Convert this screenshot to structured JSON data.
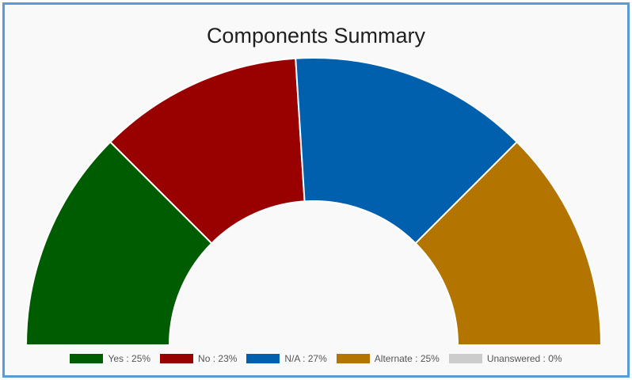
{
  "chart_data": {
    "type": "pie",
    "title": "Components Summary",
    "variant": "half-donut",
    "legend_position": "bottom",
    "slices": [
      {
        "label": "Yes : 25%",
        "value": 25,
        "color": "#005c00"
      },
      {
        "label": "No : 23%",
        "value": 23,
        "color": "#990000"
      },
      {
        "label": "N/A : 27%",
        "value": 27,
        "color": "#0060ad"
      },
      {
        "label": "Alternate : 25%",
        "value": 25,
        "color": "#b37500"
      },
      {
        "label": "Unanswered : 0%",
        "value": 0,
        "color": "#cccccc"
      }
    ]
  }
}
